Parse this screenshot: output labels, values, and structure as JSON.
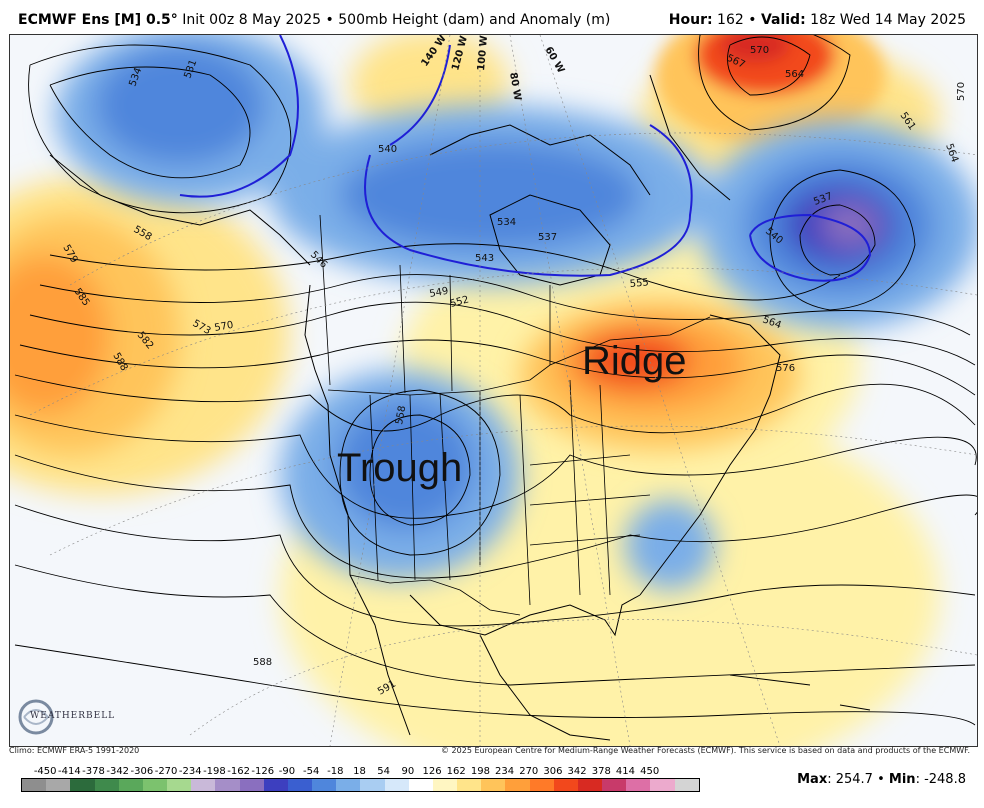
{
  "header": {
    "model": "ECMWF Ens [M] 0.5",
    "degree": "°",
    "init": "Init 00z 8 May 2025",
    "bullet": "•",
    "product": "500mb Height (dam) and Anomaly (m)",
    "hour_label": "Hour:",
    "hour_value": "162",
    "valid_label": "Valid:",
    "valid_value": "18z Wed 14 May 2025"
  },
  "annotations": {
    "ridge": "Ridge",
    "trough": "Trough"
  },
  "contour_labels": [
    "531",
    "534",
    "537",
    "540",
    "543",
    "546",
    "549",
    "552",
    "555",
    "558",
    "561",
    "564",
    "567",
    "570",
    "573",
    "576",
    "579",
    "582",
    "585",
    "588",
    "591"
  ],
  "longitude_labels": [
    "140 W",
    "120 W",
    "100 W",
    "80 W",
    "60 W"
  ],
  "logo": {
    "text": "WEATHERBELL",
    "icon": "weatherbell-swirl-icon"
  },
  "credits": {
    "climo": "Climo: ECMWF ERA-5 1991-2020",
    "copyright": "© 2025 European Centre for Medium-Range Weather Forecasts (ECMWF). This service is based on data and products of the ECMWF."
  },
  "colorbar": {
    "ticks": [
      "-450",
      "-414",
      "-378",
      "-342",
      "-306",
      "-270",
      "-234",
      "-198",
      "-162",
      "-126",
      "-90",
      "-54",
      "-18",
      "18",
      "54",
      "90",
      "126",
      "162",
      "198",
      "234",
      "270",
      "306",
      "342",
      "378",
      "414",
      "450"
    ],
    "colors": [
      "#8e8e8e",
      "#a8a8a8",
      "#2c6b3c",
      "#3f8a4c",
      "#5aa85b",
      "#7cc26e",
      "#a6d98f",
      "#c9b9d9",
      "#a58ec8",
      "#8a6fbf",
      "#3d3fbf",
      "#3a5fd0",
      "#4f86dc",
      "#7aaee8",
      "#a9cdf2",
      "#d6e8fa",
      "#ffffff",
      "#fff6c2",
      "#ffe48a",
      "#ffc45a",
      "#ff9f3a",
      "#ff7a28",
      "#f2481c",
      "#d82a22",
      "#c83a6a",
      "#dd6fa6",
      "#ecaacd",
      "#d4d4d4"
    ],
    "max_label": "Max",
    "max_value": "254.7",
    "min_label": "Min",
    "min_value": "-248.8"
  },
  "colors": {
    "trough_blue": "#4f86dc",
    "deep_blue": "#3a5fd0",
    "ridge_red": "#f2481c",
    "ridge_orange": "#ff9f3a",
    "warm_yellow": "#fff2a8",
    "contour_540": "#1f1fd6"
  }
}
